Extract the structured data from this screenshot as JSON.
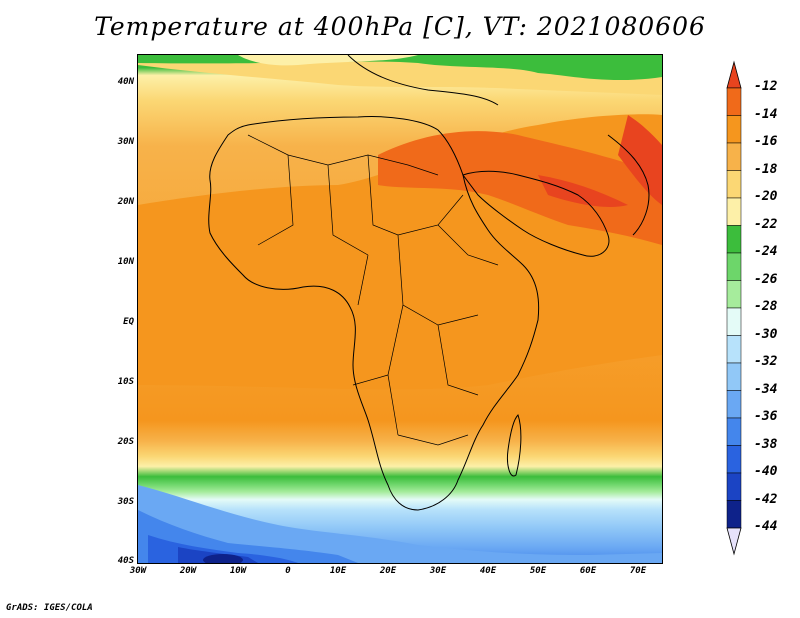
{
  "title": "Temperature at 400hPa [C], VT: 2021080606",
  "credit": "GrADS: IGES/COLA",
  "lat_labels": [
    "40N",
    "30N",
    "20N",
    "10N",
    "EQ",
    "10S",
    "20S",
    "30S",
    "40S"
  ],
  "lon_labels": [
    "30W",
    "20W",
    "10W",
    "0",
    "10E",
    "20E",
    "30E",
    "40E",
    "50E",
    "60E",
    "70E"
  ],
  "colorbar": {
    "top_value": -12,
    "bottom_value": -44,
    "labels": [
      "-12",
      "-14",
      "-16",
      "-18",
      "-20",
      "-22",
      "-24",
      "-26",
      "-28",
      "-30",
      "-32",
      "-34",
      "-36",
      "-38",
      "-40",
      "-42",
      "-44"
    ],
    "colors": [
      "#e8441f",
      "#f06a1a",
      "#f5961e",
      "#f7b24a",
      "#fbd774",
      "#fdf0a8",
      "#3cbd3c",
      "#6dd66a",
      "#a6ec9c",
      "#e4fbf7",
      "#b7e2fb",
      "#91c8f7",
      "#6aa8f3",
      "#4486ec",
      "#2a63e0",
      "#1b44c4",
      "#0e228a"
    ]
  }
}
